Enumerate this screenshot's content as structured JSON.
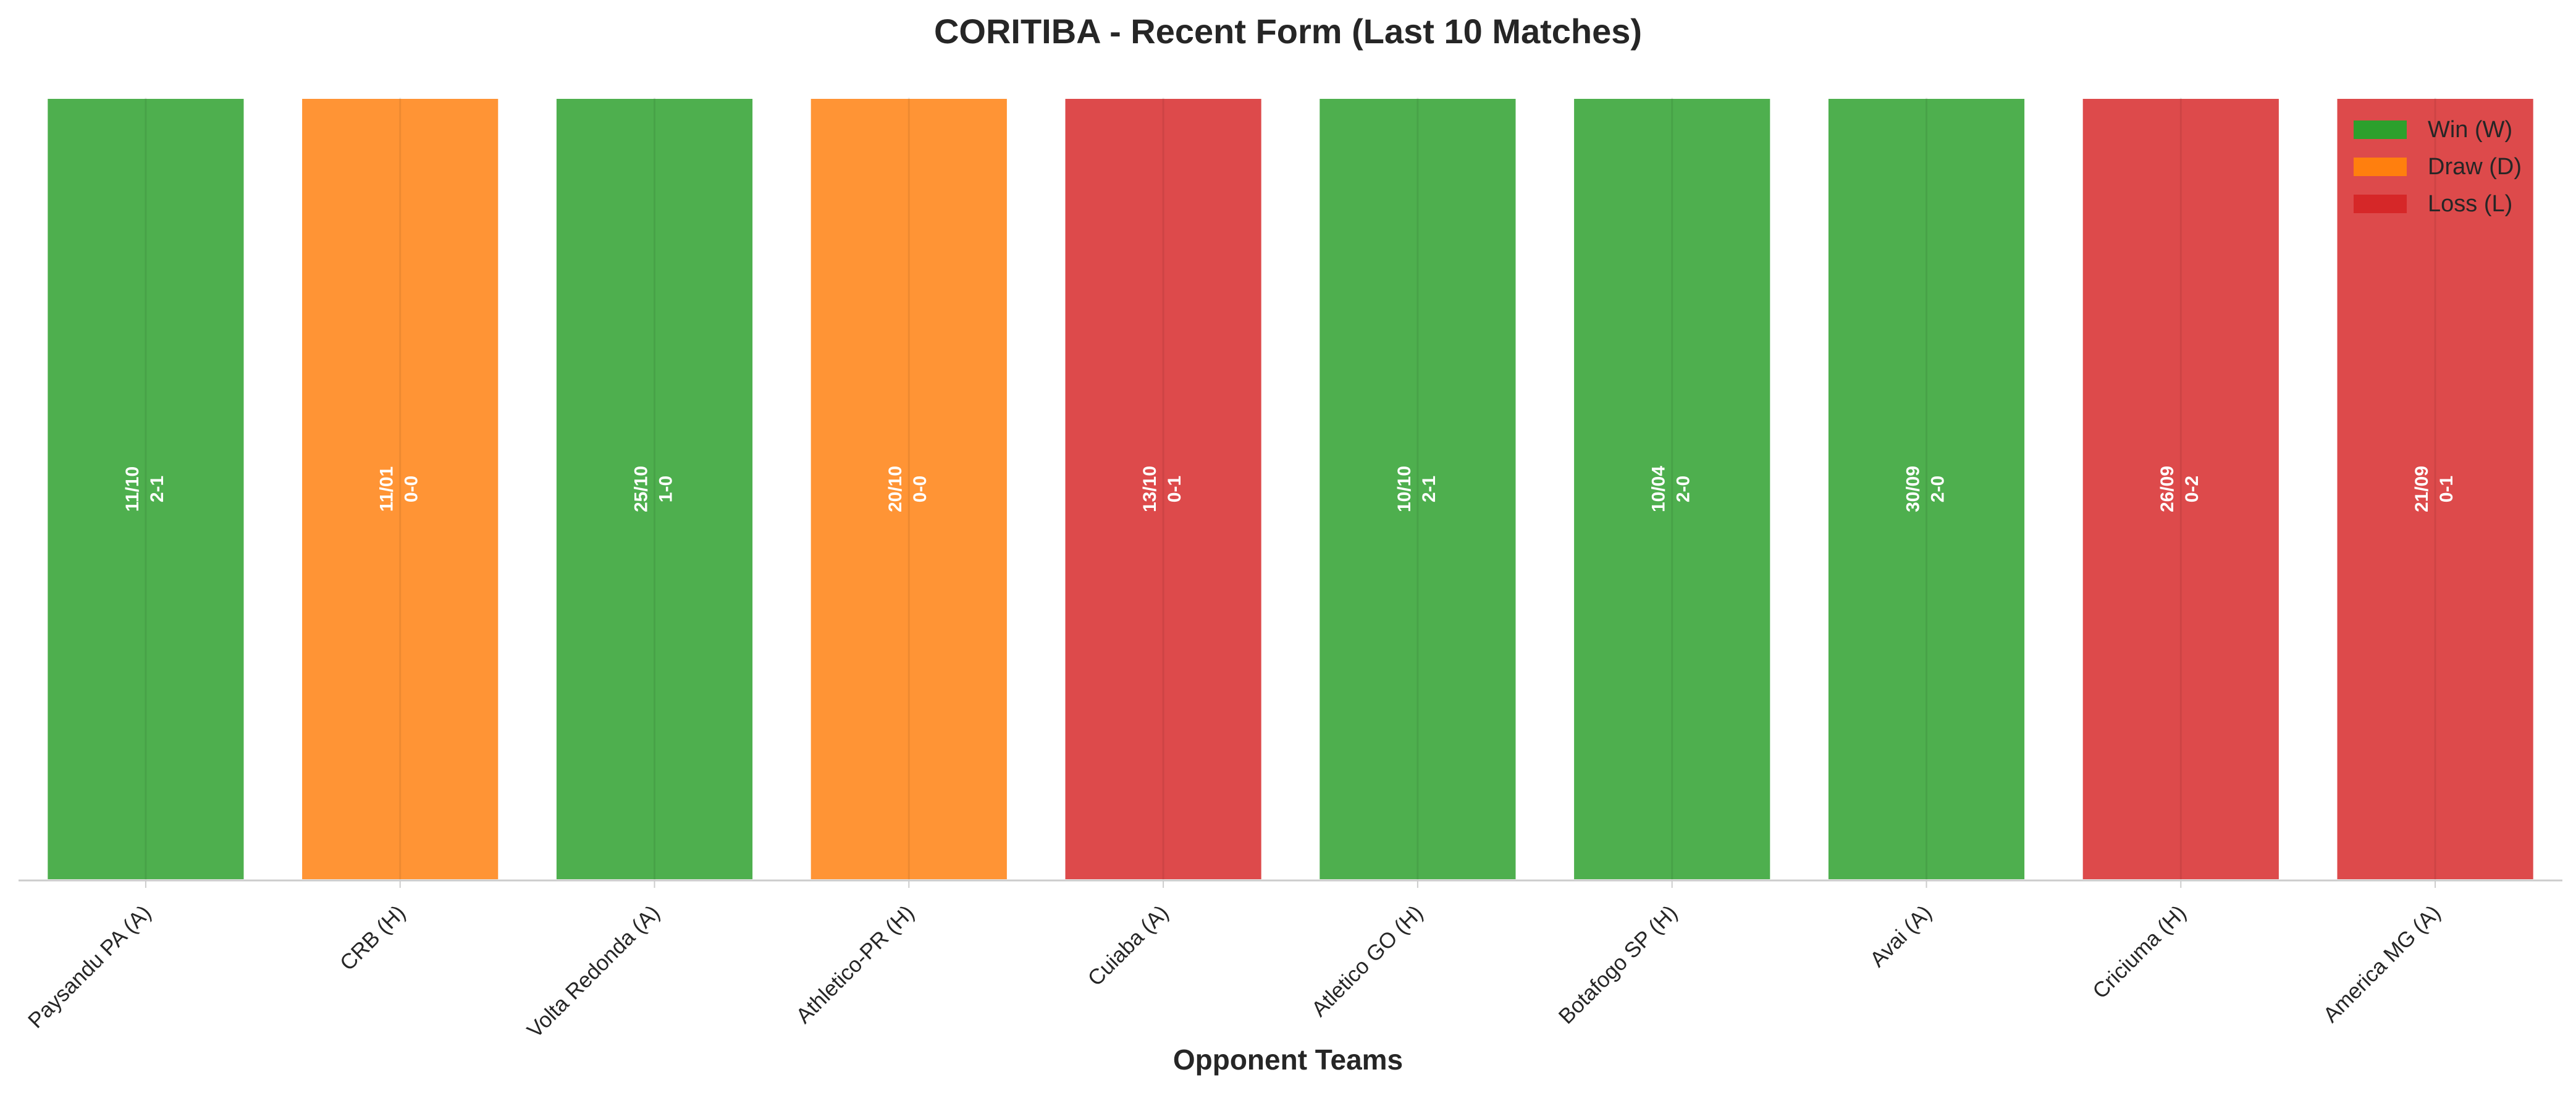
{
  "chart_data": {
    "type": "bar",
    "title": "CORITIBA - Recent Form (Last 10 Matches)",
    "xlabel": "Opponent Teams",
    "ylabel": "",
    "grid": true,
    "legend_placement": "top-right",
    "categories": [
      "Paysandu PA (A)",
      "CRB (H)",
      "Volta Redonda (A)",
      "Athletico-PR (H)",
      "Cuiaba (A)",
      "Atletico GO (H)",
      "Botafogo SP (H)",
      "Avai (A)",
      "Criciuma (H)",
      "America MG (A)"
    ],
    "values": [
      1,
      1,
      1,
      1,
      1,
      1,
      1,
      1,
      1,
      1
    ],
    "results": [
      "W",
      "D",
      "W",
      "D",
      "L",
      "W",
      "W",
      "W",
      "L",
      "L"
    ],
    "dates": [
      "11/10",
      "11/01",
      "25/10",
      "20/10",
      "13/10",
      "10/10",
      "10/04",
      "30/09",
      "26/09",
      "21/09"
    ],
    "scores": [
      "2-1",
      "0-0",
      "1-0",
      "0-0",
      "0-1",
      "2-1",
      "2-0",
      "2-0",
      "0-2",
      "0-1"
    ],
    "ylim": [
      0,
      1
    ],
    "legend": [
      {
        "key": "W",
        "label": "Win (W)",
        "color": "#2ca02c"
      },
      {
        "key": "D",
        "label": "Draw (D)",
        "color": "#ff7f0e"
      },
      {
        "key": "L",
        "label": "Loss (L)",
        "color": "#d62728"
      }
    ],
    "colors": {
      "W": "#2ca02c",
      "D": "#ff7f0e",
      "L": "#d62728"
    }
  }
}
